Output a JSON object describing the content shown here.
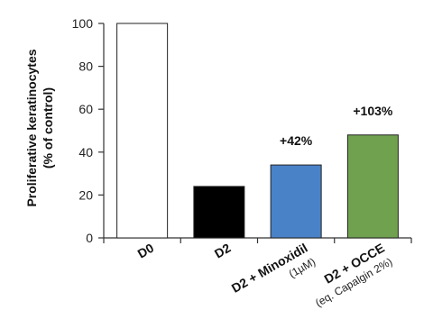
{
  "chart_data": {
    "type": "bar",
    "ylabel_line1": "Proliferative keratinocytes",
    "ylabel_line2": "(% of control)",
    "ylim": [
      0,
      100
    ],
    "yticks": [
      "0",
      "20",
      "40",
      "60",
      "80",
      "100"
    ],
    "categories": [
      {
        "label": "D0",
        "sublabel": ""
      },
      {
        "label": "D2",
        "sublabel": ""
      },
      {
        "label": "D2 + Minoxidil",
        "sublabel": "(1µM)"
      },
      {
        "label": "D2 + OCCE",
        "sublabel": "(eq. Capalgin 2%)"
      }
    ],
    "values": [
      100,
      24,
      34,
      48
    ],
    "annotations": [
      "",
      "",
      "+42%",
      "+103%"
    ],
    "colors": [
      "#ffffff",
      "#000000",
      "#4a82c8",
      "#6fa14e"
    ]
  }
}
